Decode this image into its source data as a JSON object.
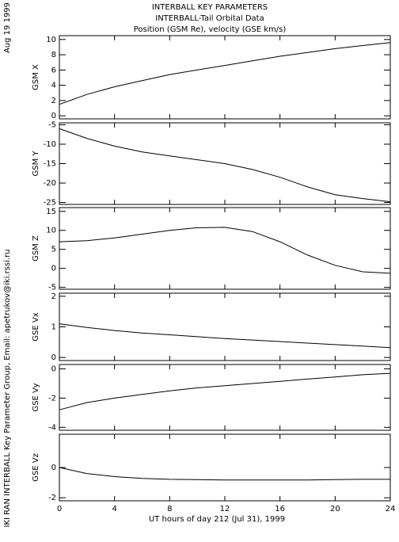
{
  "header": {
    "date": "Aug 19 1999",
    "lines": [
      "INTERBALL KEY PARAMETERS",
      "INTERBALL-Tail Orbital Data",
      "Position (GSM Re), velocity (GSE km/s)"
    ],
    "credit": "IKI RAN INTERBALL Key Parameter Group, Email: apetrukov@iki.rssi.ru"
  },
  "chart_data": [
    {
      "type": "line",
      "ylabel": "GSM X",
      "color": "#000000",
      "x": [
        0,
        2,
        4,
        6,
        8,
        10,
        12,
        14,
        16,
        18,
        20,
        22,
        24
      ],
      "values": [
        1.5,
        2.8,
        3.8,
        4.6,
        5.4,
        6.0,
        6.6,
        7.2,
        7.8,
        8.3,
        8.8,
        9.2,
        9.6
      ],
      "xlim": [
        0,
        24
      ],
      "xticks": [
        0,
        4,
        8,
        12,
        16,
        20,
        24
      ],
      "ylim": [
        -0.4,
        10.5
      ],
      "yticks": [
        0,
        2,
        4,
        6,
        8,
        10
      ]
    },
    {
      "type": "line",
      "ylabel": "GSM Y",
      "color": "#000000",
      "x": [
        0,
        2,
        4,
        6,
        8,
        10,
        12,
        14,
        16,
        18,
        20,
        22,
        24
      ],
      "values": [
        -6,
        -8.5,
        -10.5,
        -12,
        -13,
        -14,
        -15,
        -16.5,
        -18.5,
        -21,
        -23,
        -24,
        -24.8
      ],
      "xlim": [
        0,
        24
      ],
      "xticks": [
        0,
        4,
        8,
        12,
        16,
        20,
        24
      ],
      "ylim": [
        -25.5,
        -4.5
      ],
      "yticks": [
        -25,
        -20,
        -15,
        -10,
        -5
      ]
    },
    {
      "type": "line",
      "ylabel": "GSM Z",
      "color": "#000000",
      "x": [
        0,
        2,
        4,
        6,
        8,
        10,
        12,
        14,
        16,
        18,
        20,
        22,
        24
      ],
      "values": [
        7,
        7.3,
        8,
        9,
        10,
        10.7,
        10.8,
        9.7,
        7,
        3.5,
        0.8,
        -0.9,
        -1.3
      ],
      "xlim": [
        0,
        24
      ],
      "xticks": [
        0,
        4,
        8,
        12,
        16,
        20,
        24
      ],
      "ylim": [
        -5.5,
        16
      ],
      "yticks": [
        -5,
        0,
        5,
        10,
        15
      ]
    },
    {
      "type": "line",
      "ylabel": "GSE Vx",
      "color": "#000000",
      "x": [
        0,
        2,
        4,
        6,
        8,
        10,
        12,
        14,
        16,
        18,
        20,
        22,
        24
      ],
      "values": [
        1.1,
        0.98,
        0.88,
        0.8,
        0.74,
        0.68,
        0.62,
        0.57,
        0.52,
        0.47,
        0.42,
        0.37,
        0.32
      ],
      "xlim": [
        0,
        24
      ],
      "xticks": [
        0,
        4,
        8,
        12,
        16,
        20,
        24
      ],
      "ylim": [
        -0.1,
        2.1
      ],
      "yticks": [
        0,
        1,
        2
      ]
    },
    {
      "type": "line",
      "ylabel": "GSE Vy",
      "color": "#000000",
      "x": [
        0,
        2,
        4,
        6,
        8,
        10,
        12,
        14,
        16,
        18,
        20,
        22,
        24
      ],
      "values": [
        -2.8,
        -2.3,
        -2.0,
        -1.75,
        -1.5,
        -1.3,
        -1.15,
        -1.0,
        -0.85,
        -0.7,
        -0.55,
        -0.4,
        -0.3
      ],
      "xlim": [
        0,
        24
      ],
      "xticks": [
        0,
        4,
        8,
        12,
        16,
        20,
        24
      ],
      "ylim": [
        -4.2,
        0.3
      ],
      "yticks": [
        -4,
        -2,
        0
      ]
    },
    {
      "type": "line",
      "ylabel": "GSE Vz",
      "xlabel": "UT hours of day 212 (Jul 31), 1999",
      "color": "#000000",
      "x": [
        0,
        2,
        4,
        6,
        8,
        10,
        12,
        14,
        16,
        18,
        20,
        22,
        24
      ],
      "values": [
        0,
        -0.4,
        -0.6,
        -0.72,
        -0.78,
        -0.8,
        -0.82,
        -0.83,
        -0.83,
        -0.82,
        -0.8,
        -0.78,
        -0.78
      ],
      "xlim": [
        0,
        24
      ],
      "xticks": [
        0,
        4,
        8,
        12,
        16,
        20,
        24
      ],
      "ylim": [
        -2.2,
        2.2
      ],
      "yticks": [
        -2,
        0
      ]
    }
  ]
}
